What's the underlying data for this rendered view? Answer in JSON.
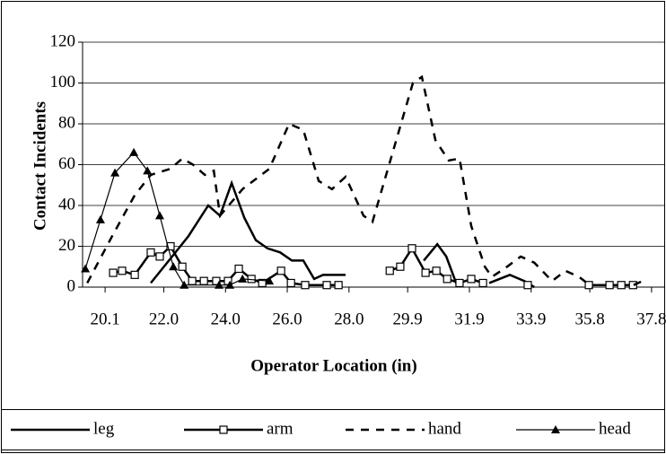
{
  "chart_data": {
    "type": "line",
    "x_label": "Operator Location (in)",
    "y_label": "Contact Incidents",
    "xlim": [
      19.37,
      38.21
    ],
    "ylim": [
      0,
      120
    ],
    "xticks": [
      {
        "value": 20.1,
        "label": "20.1"
      },
      {
        "value": 22.0,
        "label": "22.0"
      },
      {
        "value": 24.0,
        "label": "24.0"
      },
      {
        "value": 26.0,
        "label": "26.0"
      },
      {
        "value": 28.0,
        "label": "28.0"
      },
      {
        "value": 29.9,
        "label": "29.9"
      },
      {
        "value": 31.9,
        "label": "31.9"
      },
      {
        "value": 33.9,
        "label": "33.9"
      },
      {
        "value": 35.8,
        "label": "35.8"
      },
      {
        "value": 37.8,
        "label": "37.8"
      }
    ],
    "yticks": [
      0,
      20,
      40,
      60,
      80,
      100,
      120
    ],
    "grid": true,
    "legend": "bottom",
    "series": [
      {
        "name": "leg",
        "color": "#000000",
        "style": "solid",
        "width": 2.5,
        "marker": "none",
        "x": [
          21.58,
          22.22,
          22.8,
          23.44,
          23.82,
          24.2,
          24.61,
          24.98,
          25.36,
          25.77,
          26.15,
          26.52,
          26.87,
          27.16,
          27.89,
          null,
          30.42,
          30.86,
          31.15,
          31.52,
          null,
          32.54,
          33.21,
          33.68,
          34.0
        ],
        "values": [
          2,
          14,
          25,
          40,
          35,
          51,
          34,
          23,
          19,
          17,
          13,
          13,
          4,
          6,
          6,
          null,
          13,
          21,
          15,
          0,
          null,
          2,
          6,
          3,
          0
        ]
      },
      {
        "name": "arm",
        "color": "#000000",
        "style": "solid",
        "width": 2.5,
        "marker": "square",
        "x": [
          20.36,
          20.65,
          21.06,
          21.58,
          21.87,
          22.22,
          22.6,
          22.92,
          23.3,
          23.7,
          24.08,
          24.43,
          24.84,
          25.19,
          25.8,
          26.12,
          26.58,
          27.28,
          27.66,
          null,
          29.32,
          29.66,
          30.04,
          30.48,
          30.83,
          31.18,
          31.58,
          31.96,
          32.34,
          null,
          33.79,
          null,
          35.77,
          36.44,
          36.82,
          37.2
        ],
        "values": [
          7,
          8,
          6,
          17,
          15,
          20,
          10,
          3,
          3,
          3,
          3,
          9,
          4,
          2,
          8,
          2,
          1,
          1,
          1,
          null,
          8,
          10,
          19,
          7,
          8,
          4,
          2,
          4,
          2,
          null,
          1,
          null,
          1,
          1,
          1,
          1
        ]
      },
      {
        "name": "hand",
        "color": "#000000",
        "style": "dashed",
        "width": 2.5,
        "marker": "none",
        "x": [
          19.52,
          20.33,
          21.06,
          21.58,
          22.22,
          22.6,
          22.95,
          23.33,
          23.62,
          23.82,
          24.55,
          25.42,
          26.06,
          26.52,
          27.02,
          27.45,
          27.89,
          28.47,
          28.76,
          30.07,
          30.36,
          30.8,
          31.23,
          31.58,
          31.96,
          32.4,
          32.63,
          33.12,
          33.56,
          34.0,
          34.58,
          35.01,
          35.45,
          35.88,
          null,
          37.22,
          37.51
        ],
        "values": [
          2,
          25,
          45,
          55,
          58,
          63,
          60,
          55,
          57,
          35,
          48,
          58,
          80,
          77,
          52,
          48,
          54,
          35,
          32,
          100,
          103,
          72,
          62,
          63,
          30,
          10,
          5,
          10,
          15,
          12,
          3,
          8,
          5,
          0,
          null,
          1,
          3
        ]
      },
      {
        "name": "head",
        "color": "#000000",
        "style": "solid",
        "width": 1.2,
        "marker": "triangle",
        "x": [
          19.46,
          19.95,
          20.42,
          21.03,
          21.47,
          21.87,
          22.31,
          22.66,
          23.79,
          24.14,
          24.55,
          25.42
        ],
        "values": [
          9,
          33,
          56,
          66,
          57,
          35,
          10,
          1,
          1,
          1,
          4,
          3
        ]
      }
    ]
  }
}
